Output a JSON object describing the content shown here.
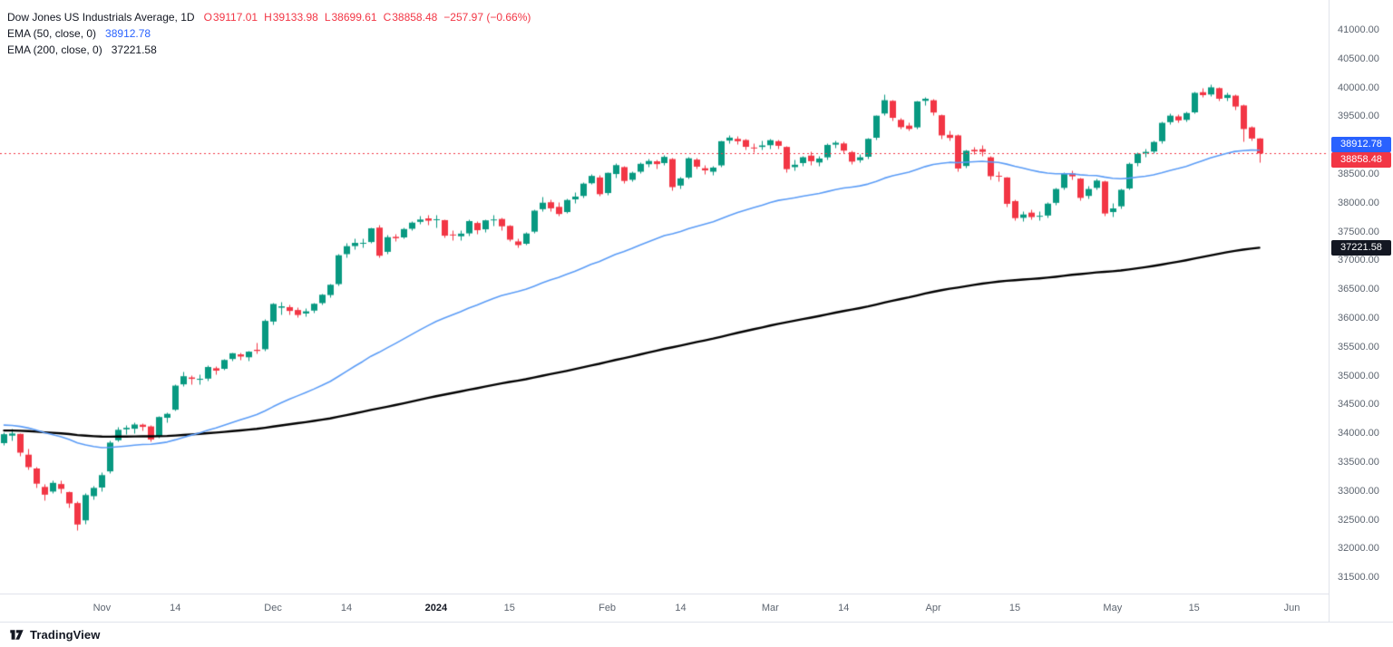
{
  "legend": {
    "title": "Dow Jones US Industrials Average, 1D",
    "ohlc": {
      "o_label": "O",
      "o": "39117.01",
      "h_label": "H",
      "h": "39133.98",
      "l_label": "L",
      "l": "38699.61",
      "c_label": "C",
      "c": "38858.48",
      "change": "−257.97 (−0.66%)"
    },
    "ema50": {
      "label": "EMA (50, close, 0)",
      "value": "38912.78"
    },
    "ema200": {
      "label": "EMA (200, close, 0)",
      "value": "37221.58"
    }
  },
  "price_axis": {
    "labels": [
      {
        "text": "41000.00",
        "value": 41000
      },
      {
        "text": "40500.00",
        "value": 40500
      },
      {
        "text": "40000.00",
        "value": 40000
      },
      {
        "text": "39500.00",
        "value": 39500
      },
      {
        "text": "39000.00",
        "value": 39000
      },
      {
        "text": "38500.00",
        "value": 38500
      },
      {
        "text": "38000.00",
        "value": 38000
      },
      {
        "text": "37500.00",
        "value": 37500
      },
      {
        "text": "37000.00",
        "value": 37000
      },
      {
        "text": "36500.00",
        "value": 36500
      },
      {
        "text": "36000.00",
        "value": 36000
      },
      {
        "text": "35500.00",
        "value": 35500
      },
      {
        "text": "35000.00",
        "value": 35000
      },
      {
        "text": "34500.00",
        "value": 34500
      },
      {
        "text": "34000.00",
        "value": 34000
      },
      {
        "text": "33500.00",
        "value": 33500
      },
      {
        "text": "33000.00",
        "value": 33000
      },
      {
        "text": "32500.00",
        "value": 32500
      },
      {
        "text": "32000.00",
        "value": 32000
      },
      {
        "text": "31500.00",
        "value": 31500
      }
    ],
    "badges": [
      {
        "text": "38912.78",
        "price": 38912.78,
        "bg": "#2962ff"
      },
      {
        "text": "38858.48",
        "price": 38858.48,
        "bg": "#f23645"
      },
      {
        "text": "37221.58",
        "price": 37221.58,
        "bg": "#131722"
      }
    ]
  },
  "time_axis": {
    "ticks": [
      {
        "label": "Nov",
        "index": 12,
        "major": false
      },
      {
        "label": "14",
        "index": 21,
        "major": false
      },
      {
        "label": "Dec",
        "index": 33,
        "major": false
      },
      {
        "label": "14",
        "index": 42,
        "major": false
      },
      {
        "label": "2024",
        "index": 53,
        "major": true
      },
      {
        "label": "15",
        "index": 62,
        "major": false
      },
      {
        "label": "Feb",
        "index": 74,
        "major": false
      },
      {
        "label": "14",
        "index": 83,
        "major": false
      },
      {
        "label": "Mar",
        "index": 94,
        "major": false
      },
      {
        "label": "14",
        "index": 103,
        "major": false
      },
      {
        "label": "Apr",
        "index": 114,
        "major": false
      },
      {
        "label": "15",
        "index": 124,
        "major": false
      },
      {
        "label": "May",
        "index": 136,
        "major": false
      },
      {
        "label": "15",
        "index": 146,
        "major": false
      },
      {
        "label": "Jun",
        "index": 158,
        "major": false
      }
    ]
  },
  "footer": {
    "brand": "TradingView"
  },
  "chart_data": {
    "type": "candlestick",
    "symbol": "Dow Jones US Industrials Average",
    "interval": "1D",
    "ylim": [
      31220,
      41520
    ],
    "total_slots": 163,
    "up_color": "#089981",
    "down_color": "#f23645",
    "last_price": 38858.48,
    "last_ohlc": {
      "open": 39117.01,
      "high": 39133.98,
      "low": 38699.61,
      "close": 38858.48,
      "change": -257.97,
      "change_pct": -0.66
    },
    "indicators": [
      {
        "name": "EMA 50",
        "period": 50,
        "seed": 34150,
        "last_value": 38912.78,
        "color": "#5b9cf6",
        "width": 1.6
      },
      {
        "name": "EMA 200",
        "period": 200,
        "seed": 34050,
        "last_value": 37221.58,
        "color": "#000000",
        "width": 2.4
      }
    ],
    "candles": [
      [
        33830,
        34020,
        33800,
        33985
      ],
      [
        33960,
        34080,
        33880,
        33997
      ],
      [
        33990,
        34010,
        33610,
        33665
      ],
      [
        33630,
        33740,
        33380,
        33414
      ],
      [
        33390,
        33420,
        33060,
        33127
      ],
      [
        33070,
        33130,
        32840,
        32936
      ],
      [
        32990,
        33190,
        32960,
        33141
      ],
      [
        33120,
        33190,
        32970,
        33036
      ],
      [
        32980,
        33000,
        32720,
        32784
      ],
      [
        32790,
        32820,
        32327,
        32418
      ],
      [
        32490,
        32970,
        32430,
        32929
      ],
      [
        32910,
        33090,
        32850,
        33053
      ],
      [
        33060,
        33320,
        32990,
        33275
      ],
      [
        33340,
        33870,
        33310,
        33839
      ],
      [
        33880,
        34120,
        33860,
        34061
      ],
      [
        34070,
        34150,
        33990,
        34096
      ],
      [
        34080,
        34190,
        34010,
        34153
      ],
      [
        34150,
        34180,
        34050,
        34112
      ],
      [
        34120,
        34140,
        33860,
        33892
      ],
      [
        33950,
        34300,
        33930,
        34283
      ],
      [
        34270,
        34370,
        34190,
        34338
      ],
      [
        34410,
        34860,
        34400,
        34828
      ],
      [
        34850,
        35070,
        34820,
        34991
      ],
      [
        34970,
        35010,
        34860,
        34945
      ],
      [
        34930,
        35030,
        34860,
        34947
      ],
      [
        34950,
        35180,
        34920,
        35151
      ],
      [
        35130,
        35170,
        35020,
        35088
      ],
      [
        35120,
        35300,
        35100,
        35273
      ],
      [
        35290,
        35410,
        35260,
        35390
      ],
      [
        35370,
        35410,
        35280,
        35333
      ],
      [
        35320,
        35440,
        35260,
        35417
      ],
      [
        35450,
        35580,
        35380,
        35430
      ],
      [
        35460,
        35980,
        35440,
        35951
      ],
      [
        35940,
        36270,
        35890,
        36245
      ],
      [
        36180,
        36290,
        36070,
        36204
      ],
      [
        36190,
        36230,
        36060,
        36124
      ],
      [
        36140,
        36190,
        36010,
        36054
      ],
      [
        36080,
        36180,
        36030,
        36117
      ],
      [
        36130,
        36270,
        36090,
        36248
      ],
      [
        36260,
        36430,
        36230,
        36405
      ],
      [
        36400,
        36600,
        36370,
        36578
      ],
      [
        36590,
        37110,
        36560,
        37090
      ],
      [
        37110,
        37310,
        37060,
        37248
      ],
      [
        37250,
        37390,
        37190,
        37305
      ],
      [
        37290,
        37390,
        37230,
        37306
      ],
      [
        37320,
        37580,
        37300,
        37558
      ],
      [
        37570,
        37620,
        37050,
        37082
      ],
      [
        37150,
        37440,
        37110,
        37404
      ],
      [
        37410,
        37470,
        37330,
        37386
      ],
      [
        37400,
        37570,
        37380,
        37545
      ],
      [
        37550,
        37690,
        37520,
        37656
      ],
      [
        37670,
        37780,
        37640,
        37710
      ],
      [
        37730,
        37790,
        37620,
        37690
      ],
      [
        37700,
        37790,
        37570,
        37715
      ],
      [
        37700,
        37720,
        37400,
        37430
      ],
      [
        37450,
        37530,
        37360,
        37440
      ],
      [
        37420,
        37520,
        37350,
        37466
      ],
      [
        37470,
        37710,
        37430,
        37683
      ],
      [
        37650,
        37680,
        37470,
        37525
      ],
      [
        37540,
        37720,
        37500,
        37696
      ],
      [
        37700,
        37790,
        37610,
        37711
      ],
      [
        37720,
        37740,
        37520,
        37593
      ],
      [
        37600,
        37620,
        37330,
        37361
      ],
      [
        37330,
        37390,
        37220,
        37267
      ],
      [
        37290,
        37490,
        37270,
        37468
      ],
      [
        37500,
        37890,
        37480,
        37864
      ],
      [
        37890,
        38110,
        37860,
        38002
      ],
      [
        38010,
        38060,
        37860,
        37905
      ],
      [
        37930,
        38020,
        37770,
        37806
      ],
      [
        37840,
        38080,
        37820,
        38049
      ],
      [
        38060,
        38180,
        38000,
        38109
      ],
      [
        38120,
        38360,
        38090,
        38333
      ],
      [
        38340,
        38500,
        38320,
        38467
      ],
      [
        38440,
        38480,
        38120,
        38150
      ],
      [
        38170,
        38540,
        38140,
        38520
      ],
      [
        38500,
        38690,
        38440,
        38654
      ],
      [
        38620,
        38640,
        38340,
        38380
      ],
      [
        38400,
        38550,
        38370,
        38521
      ],
      [
        38540,
        38700,
        38510,
        38677
      ],
      [
        38670,
        38770,
        38620,
        38726
      ],
      [
        38720,
        38760,
        38600,
        38672
      ],
      [
        38690,
        38830,
        38660,
        38797
      ],
      [
        38760,
        38780,
        38220,
        38273
      ],
      [
        38300,
        38450,
        38250,
        38424
      ],
      [
        38440,
        38800,
        38420,
        38773
      ],
      [
        38750,
        38790,
        38590,
        38628
      ],
      [
        38600,
        38660,
        38500,
        38563
      ],
      [
        38540,
        38650,
        38490,
        38612
      ],
      [
        38650,
        39090,
        38630,
        39069
      ],
      [
        39080,
        39180,
        39030,
        39132
      ],
      [
        39110,
        39160,
        39020,
        39069
      ],
      [
        39090,
        39120,
        38930,
        38972
      ],
      [
        38960,
        39030,
        38880,
        38949
      ],
      [
        38970,
        39080,
        38920,
        38996
      ],
      [
        39000,
        39120,
        38940,
        39087
      ],
      [
        39070,
        39100,
        38940,
        38990
      ],
      [
        38970,
        38990,
        38540,
        38585
      ],
      [
        38620,
        38750,
        38570,
        38661
      ],
      [
        38690,
        38820,
        38640,
        38791
      ],
      [
        38820,
        38890,
        38660,
        38723
      ],
      [
        38700,
        38810,
        38640,
        38769
      ],
      [
        38790,
        39030,
        38760,
        39005
      ],
      [
        39010,
        39090,
        38950,
        39043
      ],
      [
        39030,
        39060,
        38860,
        38906
      ],
      [
        38880,
        38910,
        38680,
        38715
      ],
      [
        38740,
        38850,
        38700,
        38790
      ],
      [
        38800,
        39130,
        38770,
        39110
      ],
      [
        39130,
        39530,
        39100,
        39512
      ],
      [
        39550,
        39889,
        39520,
        39781
      ],
      [
        39770,
        39790,
        39430,
        39475
      ],
      [
        39440,
        39480,
        39280,
        39313
      ],
      [
        39340,
        39400,
        39250,
        39282
      ],
      [
        39310,
        39780,
        39290,
        39760
      ],
      [
        39770,
        39840,
        39700,
        39807
      ],
      [
        39780,
        39800,
        39520,
        39567
      ],
      [
        39520,
        39540,
        39120,
        39170
      ],
      [
        39180,
        39250,
        39080,
        39127
      ],
      [
        39170,
        39190,
        38550,
        38596
      ],
      [
        38640,
        38930,
        38610,
        38904
      ],
      [
        38920,
        38970,
        38840,
        38893
      ],
      [
        38930,
        39010,
        38820,
        38884
      ],
      [
        38790,
        38810,
        38410,
        38462
      ],
      [
        38470,
        38550,
        38380,
        38459
      ],
      [
        38440,
        38460,
        37930,
        37983
      ],
      [
        38030,
        38060,
        37700,
        37735
      ],
      [
        37740,
        37860,
        37680,
        37798
      ],
      [
        37830,
        37880,
        37710,
        37753
      ],
      [
        37770,
        37850,
        37700,
        37775
      ],
      [
        37780,
        38010,
        37740,
        37986
      ],
      [
        38000,
        38270,
        37970,
        38240
      ],
      [
        38260,
        38530,
        38230,
        38503
      ],
      [
        38510,
        38560,
        38410,
        38460
      ],
      [
        38420,
        38440,
        38040,
        38086
      ],
      [
        38120,
        38300,
        38080,
        38240
      ],
      [
        38260,
        38420,
        38230,
        38386
      ],
      [
        38370,
        38390,
        37780,
        37815
      ],
      [
        37840,
        38000,
        37760,
        37903
      ],
      [
        37940,
        38250,
        37900,
        38226
      ],
      [
        38250,
        38700,
        38230,
        38676
      ],
      [
        38690,
        38880,
        38650,
        38852
      ],
      [
        38860,
        38940,
        38800,
        38884
      ],
      [
        38890,
        39080,
        38860,
        39056
      ],
      [
        39070,
        39410,
        39040,
        39388
      ],
      [
        39400,
        39560,
        39370,
        39513
      ],
      [
        39500,
        39540,
        39390,
        39431
      ],
      [
        39440,
        39580,
        39410,
        39558
      ],
      [
        39570,
        39930,
        39550,
        39908
      ],
      [
        39920,
        39990,
        39840,
        39869
      ],
      [
        39880,
        40050,
        39850,
        40004
      ],
      [
        39990,
        40010,
        39770,
        39807
      ],
      [
        39820,
        39910,
        39780,
        39873
      ],
      [
        39860,
        39880,
        39620,
        39671
      ],
      [
        39690,
        39710,
        39070,
        39281
      ],
      [
        39310,
        39330,
        39080,
        39116
      ],
      [
        39117.01,
        39133.98,
        38699.61,
        38858.48
      ]
    ]
  }
}
